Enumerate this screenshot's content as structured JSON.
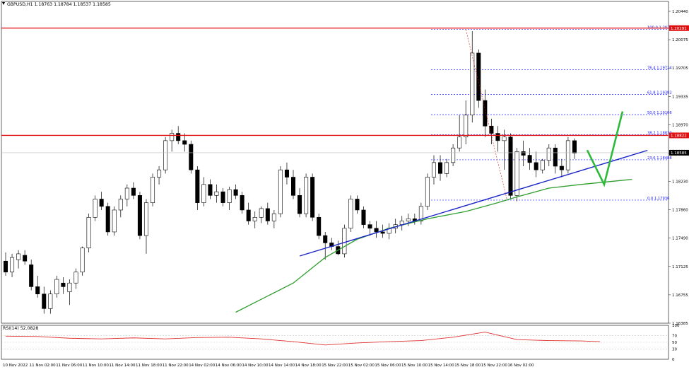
{
  "header": {
    "symbol_text": "GBPUSD,H1  1.18763 1.18784 1.18537 1.18585",
    "rsi_text": "RSI(14) 52.0828"
  },
  "colors": {
    "bull": "#ffffff",
    "bear": "#000000",
    "ma": "#2e9e2e",
    "trendline": "#1a24c8",
    "resistance": "#e01010",
    "fib": "#1a1aff",
    "rsi": "#e03030",
    "arrow": "#2dba3a",
    "grid": "#c8c8c8"
  },
  "price_axis": {
    "ticks": [
      "1.20440",
      "1.20075",
      "1.19705",
      "1.19335",
      "1.18970",
      "1.18600",
      "1.18230",
      "1.17860",
      "1.17490",
      "1.17125",
      "1.16755",
      "1.16385"
    ],
    "current_price": "1.18585",
    "resistance_price": "1.18822",
    "top_resistance_price": "1.20291"
  },
  "time_axis": {
    "labels": [
      "10 Nov 2022",
      "11 Nov 02:00",
      "11 Nov 06:00",
      "11 Nov 10:00",
      "11 Nov 14:00",
      "11 Nov 18:00",
      "11 Nov 22:00",
      "14 Nov 02:00",
      "14 Nov 06:00",
      "14 Nov 10:00",
      "14 Nov 14:00",
      "14 Nov 18:00",
      "15 Nov 22:00",
      "15 Nov 02:00",
      "15 Nov 06:00",
      "15 Nov 10:00",
      "15 Nov 14:00",
      "15 Nov 18:00",
      "15 Nov 22:00",
      "16 Nov 02:00"
    ]
  },
  "rsi_axis": {
    "ticks": [
      "100",
      "70",
      "50",
      "30",
      "0"
    ]
  },
  "fib_levels": [
    {
      "label": "100.0 1.20276",
      "price": 1.20276
    },
    {
      "label": "76.4 1.19724",
      "price": 1.19724
    },
    {
      "label": "61.8 1.19382",
      "price": 1.19382
    },
    {
      "label": "50.0 1.19106",
      "price": 1.19106
    },
    {
      "label": "38.2 1.18830",
      "price": 1.1883
    },
    {
      "label": "23.6 1.18488",
      "price": 1.18488
    },
    {
      "label": "0.0 1.17936",
      "price": 1.17936
    }
  ],
  "chart_data": {
    "type": "candlestick",
    "title": "GBPUSD,H1",
    "ylim": [
      1.1625,
      1.2056
    ],
    "rsi_ylim": [
      0,
      100
    ],
    "candles": [
      [
        1.171,
        1.1722,
        1.169,
        1.1695
      ],
      [
        1.1695,
        1.172,
        1.1688,
        1.1715
      ],
      [
        1.1712,
        1.1725,
        1.17,
        1.172
      ],
      [
        1.1718,
        1.1725,
        1.1705,
        1.171
      ],
      [
        1.1705,
        1.1712,
        1.167,
        1.1675
      ],
      [
        1.1675,
        1.169,
        1.166,
        1.1665
      ],
      [
        1.1665,
        1.1675,
        1.1638,
        1.1645
      ],
      [
        1.1645,
        1.167,
        1.1638,
        1.1665
      ],
      [
        1.1665,
        1.169,
        1.166,
        1.1685
      ],
      [
        1.168,
        1.1688,
        1.1665,
        1.1675
      ],
      [
        1.1668,
        1.1685,
        1.165,
        1.168
      ],
      [
        1.168,
        1.17,
        1.1672,
        1.1695
      ],
      [
        1.1695,
        1.173,
        1.169,
        1.1728
      ],
      [
        1.1728,
        1.1775,
        1.1722,
        1.177
      ],
      [
        1.177,
        1.18,
        1.1765,
        1.1795
      ],
      [
        1.1795,
        1.1805,
        1.178,
        1.1785
      ],
      [
        1.1785,
        1.179,
        1.1745,
        1.175
      ],
      [
        1.175,
        1.1785,
        1.1745,
        1.178
      ],
      [
        1.178,
        1.18,
        1.177,
        1.1795
      ],
      [
        1.1795,
        1.1815,
        1.1785,
        1.181
      ],
      [
        1.181,
        1.1818,
        1.1795,
        1.18
      ],
      [
        1.18,
        1.1805,
        1.174,
        1.1745
      ],
      [
        1.1745,
        1.1795,
        1.172,
        1.179
      ],
      [
        1.179,
        1.183,
        1.1785,
        1.1825
      ],
      [
        1.1825,
        1.184,
        1.1815,
        1.1835
      ],
      [
        1.1835,
        1.188,
        1.183,
        1.1875
      ],
      [
        1.1875,
        1.189,
        1.186,
        1.1885
      ],
      [
        1.1885,
        1.1895,
        1.187,
        1.1875
      ],
      [
        1.1875,
        1.1885,
        1.186,
        1.187
      ],
      [
        1.187,
        1.1875,
        1.183,
        1.1835
      ],
      [
        1.1835,
        1.184,
        1.178,
        1.179
      ],
      [
        1.179,
        1.1825,
        1.1785,
        1.1815
      ],
      [
        1.1815,
        1.1822,
        1.1795,
        1.18
      ],
      [
        1.18,
        1.1815,
        1.179,
        1.1805
      ],
      [
        1.1805,
        1.181,
        1.1785,
        1.179
      ],
      [
        1.179,
        1.1812,
        1.178,
        1.1808
      ],
      [
        1.1808,
        1.1815,
        1.1795,
        1.18
      ],
      [
        1.18,
        1.1805,
        1.1775,
        1.178
      ],
      [
        1.178,
        1.179,
        1.176,
        1.1765
      ],
      [
        1.1765,
        1.1778,
        1.1755,
        1.177
      ],
      [
        1.177,
        1.1785,
        1.1762,
        1.1782
      ],
      [
        1.1782,
        1.179,
        1.176,
        1.1765
      ],
      [
        1.1765,
        1.178,
        1.1755,
        1.1775
      ],
      [
        1.1775,
        1.184,
        1.177,
        1.1835
      ],
      [
        1.1835,
        1.1845,
        1.1815,
        1.1825
      ],
      [
        1.1825,
        1.1835,
        1.1795,
        1.18
      ],
      [
        1.18,
        1.181,
        1.177,
        1.1775
      ],
      [
        1.1775,
        1.183,
        1.177,
        1.1825
      ],
      [
        1.1825,
        1.183,
        1.1765,
        1.177
      ],
      [
        1.177,
        1.1775,
        1.174,
        1.1745
      ],
      [
        1.1745,
        1.175,
        1.1712,
        1.1735
      ],
      [
        1.1735,
        1.1742,
        1.1725,
        1.173
      ],
      [
        1.173,
        1.1738,
        1.1718,
        1.172
      ],
      [
        1.172,
        1.176,
        1.1715,
        1.1755
      ],
      [
        1.1755,
        1.18,
        1.175,
        1.1795
      ],
      [
        1.1795,
        1.18,
        1.1775,
        1.178
      ],
      [
        1.178,
        1.1785,
        1.1755,
        1.176
      ],
      [
        1.176,
        1.1765,
        1.1745,
        1.1755
      ],
      [
        1.1755,
        1.1765,
        1.1742,
        1.175
      ],
      [
        1.175,
        1.176,
        1.1742,
        1.1748
      ],
      [
        1.1748,
        1.1762,
        1.174,
        1.1755
      ],
      [
        1.1755,
        1.1768,
        1.1748,
        1.176
      ],
      [
        1.176,
        1.1772,
        1.1752,
        1.1765
      ],
      [
        1.1765,
        1.1775,
        1.1758,
        1.1768
      ],
      [
        1.1768,
        1.1775,
        1.176,
        1.1765
      ],
      [
        1.1765,
        1.179,
        1.176,
        1.1785
      ],
      [
        1.1785,
        1.183,
        1.178,
        1.1825
      ],
      [
        1.1825,
        1.1855,
        1.1815,
        1.1845
      ],
      [
        1.1845,
        1.1855,
        1.182,
        1.183
      ],
      [
        1.183,
        1.185,
        1.1825,
        1.1845
      ],
      [
        1.1845,
        1.187,
        1.184,
        1.1865
      ],
      [
        1.1865,
        1.191,
        1.186,
        1.188
      ],
      [
        1.188,
        1.193,
        1.187,
        1.191
      ],
      [
        1.191,
        1.2025,
        1.19,
        1.1995
      ],
      [
        1.1995,
        1.2,
        1.192,
        1.193
      ],
      [
        1.193,
        1.1945,
        1.188,
        1.1895
      ],
      [
        1.1895,
        1.1905,
        1.187,
        1.1885
      ],
      [
        1.1885,
        1.1895,
        1.186,
        1.1875
      ],
      [
        1.1875,
        1.189,
        1.1835,
        1.188
      ],
      [
        1.188,
        1.1885,
        1.1795,
        1.18
      ],
      [
        1.18,
        1.1865,
        1.1792,
        1.186
      ],
      [
        1.186,
        1.1875,
        1.184,
        1.1855
      ],
      [
        1.1855,
        1.1865,
        1.1835,
        1.1845
      ],
      [
        1.1845,
        1.186,
        1.1825,
        1.1835
      ],
      [
        1.1835,
        1.185,
        1.183,
        1.1848
      ],
      [
        1.1848,
        1.187,
        1.184,
        1.1865
      ],
      [
        1.1865,
        1.187,
        1.183,
        1.184
      ],
      [
        1.184,
        1.185,
        1.1825,
        1.1835
      ],
      [
        1.1835,
        1.188,
        1.183,
        1.1875
      ],
      [
        1.1875,
        1.1878,
        1.185,
        1.1858
      ]
    ],
    "ma": [
      [
        36,
        1.164
      ],
      [
        45,
        1.168
      ],
      [
        50,
        1.1715
      ],
      [
        55,
        1.174
      ],
      [
        60,
        1.1755
      ],
      [
        66,
        1.1768
      ],
      [
        72,
        1.1778
      ],
      [
        77,
        1.179
      ],
      [
        80,
        1.1798
      ],
      [
        85,
        1.181
      ],
      [
        90,
        1.1815
      ],
      [
        98,
        1.1822
      ]
    ],
    "trendline": [
      [
        46,
        1.1717
      ],
      [
        96,
        1.1852
      ]
    ],
    "rsi": [
      [
        0,
        68
      ],
      [
        5,
        67
      ],
      [
        10,
        62
      ],
      [
        15,
        60
      ],
      [
        20,
        63
      ],
      [
        25,
        60
      ],
      [
        30,
        64
      ],
      [
        35,
        65
      ],
      [
        40,
        60
      ],
      [
        45,
        52
      ],
      [
        50,
        42
      ],
      [
        55,
        48
      ],
      [
        60,
        52
      ],
      [
        65,
        55
      ],
      [
        70,
        65
      ],
      [
        75,
        80
      ],
      [
        80,
        58
      ],
      [
        85,
        55
      ],
      [
        90,
        54
      ],
      [
        93,
        52
      ]
    ]
  }
}
